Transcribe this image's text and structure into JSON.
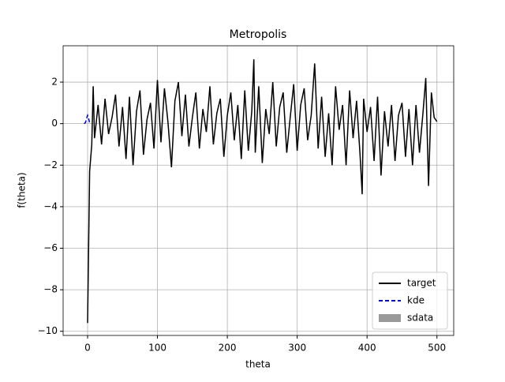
{
  "chart_data": {
    "type": "line",
    "title": "Metropolis",
    "x_label": "theta",
    "y_label": "f(theta)",
    "xlim": [
      -35,
      524
    ],
    "ylim": [
      -10.2,
      3.75
    ],
    "xticks": [
      0,
      100,
      200,
      300,
      400,
      500
    ],
    "yticks": [
      {
        "value": -10,
        "label": "−10"
      },
      {
        "value": -8,
        "label": "−8"
      },
      {
        "value": -6,
        "label": "−6"
      },
      {
        "value": -4,
        "label": "−4"
      },
      {
        "value": -2,
        "label": "−2"
      },
      0,
      2
    ],
    "grid": true,
    "legend": "lower right",
    "series": [
      {
        "name": "target",
        "color": "#000000",
        "style": "solid",
        "x": [
          0,
          3,
          6,
          8,
          10,
          15,
          20,
          25,
          30,
          35,
          40,
          45,
          50,
          55,
          60,
          65,
          70,
          75,
          80,
          85,
          90,
          95,
          100,
          105,
          110,
          115,
          120,
          125,
          130,
          135,
          140,
          145,
          150,
          155,
          160,
          165,
          170,
          175,
          180,
          185,
          190,
          195,
          200,
          205,
          210,
          215,
          220,
          225,
          230,
          235,
          238,
          240,
          245,
          250,
          255,
          260,
          265,
          270,
          275,
          280,
          285,
          290,
          295,
          300,
          305,
          310,
          315,
          320,
          325,
          330,
          335,
          340,
          345,
          350,
          355,
          360,
          365,
          370,
          375,
          380,
          385,
          390,
          393,
          395,
          400,
          405,
          410,
          415,
          420,
          425,
          430,
          435,
          440,
          445,
          450,
          455,
          460,
          465,
          470,
          475,
          480,
          484,
          488,
          492,
          496,
          500
        ],
        "values": [
          -9.6,
          -2.3,
          -1.0,
          1.8,
          -0.7,
          0.9,
          -1.0,
          1.2,
          -0.5,
          0.3,
          1.4,
          -1.1,
          0.8,
          -1.7,
          1.3,
          -2.0,
          0.6,
          1.6,
          -1.5,
          0.2,
          1.0,
          -1.2,
          2.1,
          -0.9,
          1.7,
          0.1,
          -2.1,
          1.1,
          2.0,
          -0.6,
          1.4,
          -1.1,
          0.3,
          1.5,
          -1.2,
          0.7,
          -0.4,
          1.8,
          -1.0,
          0.5,
          1.2,
          -1.6,
          0.4,
          1.5,
          -0.8,
          0.9,
          -1.7,
          1.6,
          -1.3,
          0.6,
          3.1,
          -1.4,
          1.8,
          -1.9,
          0.7,
          -0.5,
          2.0,
          -1.1,
          0.8,
          1.5,
          -1.4,
          0.3,
          1.9,
          -1.3,
          0.9,
          1.7,
          -0.8,
          0.4,
          2.9,
          -1.2,
          1.3,
          -1.6,
          0.5,
          -2.0,
          1.8,
          -0.3,
          0.9,
          -2.0,
          1.6,
          -0.7,
          1.1,
          -1.5,
          -3.4,
          1.2,
          -0.4,
          0.8,
          -1.8,
          1.3,
          -2.5,
          0.6,
          -1.1,
          0.9,
          -1.8,
          0.4,
          1.0,
          -1.6,
          0.7,
          -2.0,
          0.9,
          -1.4,
          0.5,
          2.2,
          -3.0,
          1.5,
          0.3,
          0.1
        ]
      },
      {
        "name": "kde",
        "color": "#0000cc",
        "style": "dashed",
        "x": [
          -5,
          -3,
          -1,
          0,
          1,
          3,
          5
        ],
        "values": [
          0,
          0.05,
          0.3,
          0.4,
          0.3,
          0.05,
          0
        ]
      },
      {
        "name": "sdata",
        "color": "#999999",
        "style": "patch",
        "x": [],
        "values": []
      }
    ]
  }
}
